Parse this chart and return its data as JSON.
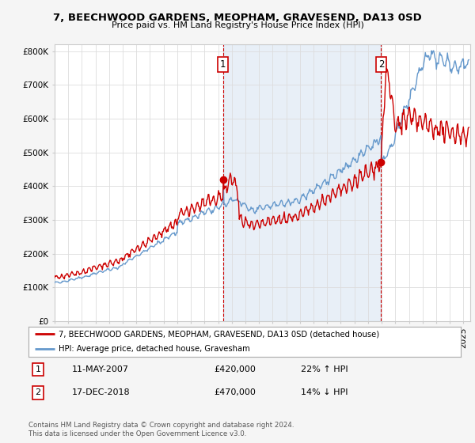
{
  "title": "7, BEECHWOOD GARDENS, MEOPHAM, GRAVESEND, DA13 0SD",
  "subtitle": "Price paid vs. HM Land Registry's House Price Index (HPI)",
  "ylim": [
    0,
    800000
  ],
  "xlim_start": 1995.0,
  "xlim_end": 2025.5,
  "legend_label_red": "7, BEECHWOOD GARDENS, MEOPHAM, GRAVESEND, DA13 0SD (detached house)",
  "legend_label_blue": "HPI: Average price, detached house, Gravesham",
  "marker1_label": "1",
  "marker1_date": "11-MAY-2007",
  "marker1_price": "£420,000",
  "marker1_hpi": "22% ↑ HPI",
  "marker1_x": 2007.36,
  "marker1_y": 420000,
  "marker2_label": "2",
  "marker2_date": "17-DEC-2018",
  "marker2_price": "£470,000",
  "marker2_hpi": "14% ↓ HPI",
  "marker2_x": 2018.96,
  "marker2_y": 470000,
  "red_color": "#cc0000",
  "blue_color": "#6699cc",
  "shade_color": "#ddeeff",
  "footer": "Contains HM Land Registry data © Crown copyright and database right 2024.\nThis data is licensed under the Open Government Licence v3.0.",
  "background_color": "#f5f5f5",
  "plot_bg_color": "#ffffff"
}
